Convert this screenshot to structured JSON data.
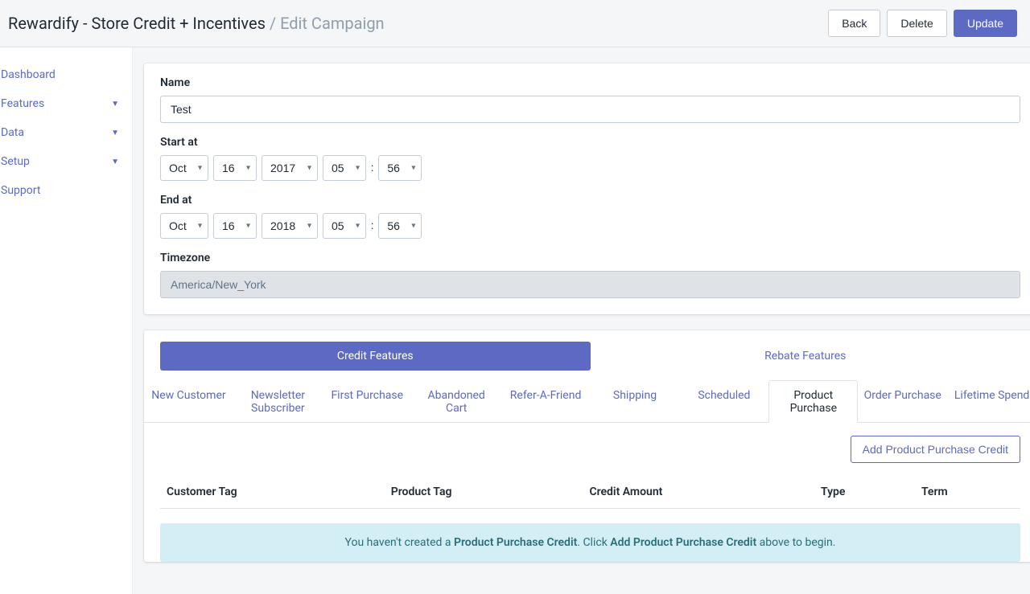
{
  "header": {
    "title_main": "Rewardify - Store Credit + Incentives",
    "title_separator": " / ",
    "title_sub": "Edit Campaign",
    "back": "Back",
    "delete": "Delete",
    "update": "Update"
  },
  "sidebar": {
    "items": [
      {
        "label": "Dashboard",
        "has_caret": false
      },
      {
        "label": "Features",
        "has_caret": true
      },
      {
        "label": "Data",
        "has_caret": true
      },
      {
        "label": "Setup",
        "has_caret": true
      },
      {
        "label": "Support",
        "has_caret": false
      }
    ]
  },
  "form": {
    "name_label": "Name",
    "name_value": "Test",
    "start_label": "Start at",
    "start": {
      "month": "Oct",
      "day": "16",
      "year": "2017",
      "hour": "05",
      "minute": "56"
    },
    "end_label": "End at",
    "end": {
      "month": "Oct",
      "day": "16",
      "year": "2018",
      "hour": "05",
      "minute": "56"
    },
    "timezone_label": "Timezone",
    "timezone_value": "America/New_York"
  },
  "feature_tabs": {
    "credit": "Credit Features",
    "rebate": "Rebate Features"
  },
  "sub_tabs": [
    "New Customer",
    "Newsletter Subscriber",
    "First Purchase",
    "Abandoned Cart",
    "Refer-A-Friend",
    "Shipping",
    "Scheduled",
    "Product Purchase",
    "Order Purchase",
    "Lifetime Spend"
  ],
  "sub_tabs_active_index": 7,
  "add_button": "Add Product Purchase Credit",
  "table": {
    "columns": [
      "Customer Tag",
      "Product Tag",
      "Credit Amount",
      "Type",
      "Term"
    ]
  },
  "banner": {
    "prefix": "You haven't created a ",
    "bold1": "Product Purchase Credit",
    "mid": ". Click ",
    "bold2": "Add Product Purchase Credit",
    "suffix": " above to begin.",
    "background": "#d4eef6",
    "text_color": "#2a6e78"
  },
  "colors": {
    "primary": "#5c6ac4"
  }
}
